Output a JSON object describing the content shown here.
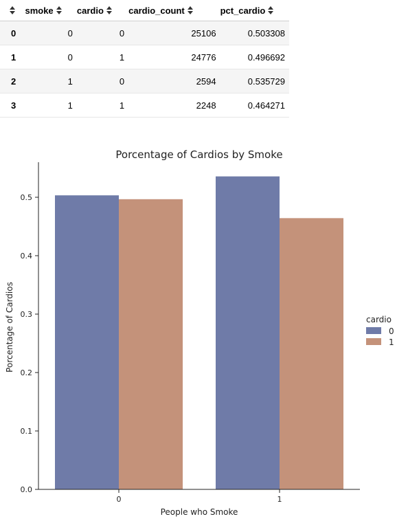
{
  "table": {
    "columns": [
      "smoke",
      "cardio",
      "cardio_count",
      "pct_cardio"
    ],
    "rows": [
      {
        "index": "0",
        "smoke": "0",
        "cardio": "0",
        "cardio_count": "25106",
        "pct_cardio": "0.503308"
      },
      {
        "index": "1",
        "smoke": "0",
        "cardio": "1",
        "cardio_count": "24776",
        "pct_cardio": "0.496692"
      },
      {
        "index": "2",
        "smoke": "1",
        "cardio": "0",
        "cardio_count": "2594",
        "pct_cardio": "0.535729"
      },
      {
        "index": "3",
        "smoke": "1",
        "cardio": "1",
        "cardio_count": "2248",
        "pct_cardio": "0.464271"
      }
    ]
  },
  "colors": {
    "cardio_0": "#6f7ba8",
    "cardio_1": "#c4927a"
  },
  "chart_data": {
    "type": "bar",
    "title": "Porcentage of Cardios by Smoke",
    "xlabel": "People who Smoke",
    "ylabel": "Porcentage of Cardios",
    "categories": [
      "0",
      "1"
    ],
    "series": [
      {
        "name": "0",
        "values": [
          0.503308,
          0.535729
        ]
      },
      {
        "name": "1",
        "values": [
          0.496692,
          0.464271
        ]
      }
    ],
    "ylim": [
      0,
      0.56
    ],
    "yticks": [
      "0.0",
      "0.1",
      "0.2",
      "0.3",
      "0.4",
      "0.5"
    ],
    "legend": {
      "title": "cardio",
      "position": "right"
    },
    "grid": false
  }
}
